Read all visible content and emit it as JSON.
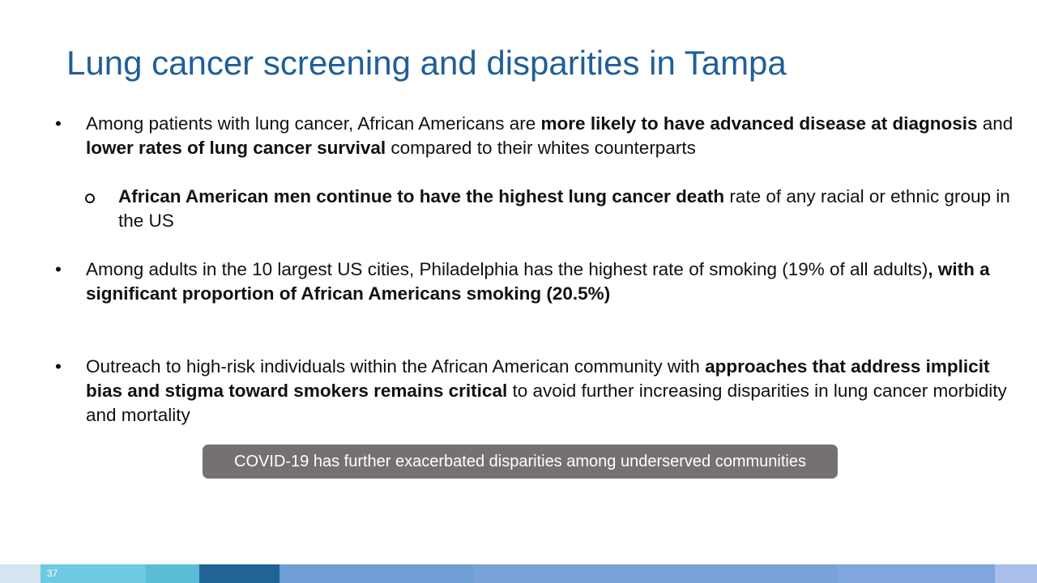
{
  "title": "Lung cancer screening and disparities in Tampa",
  "bullets": [
    {
      "level": 1,
      "runs": [
        {
          "text": "Among patients with lung cancer, African Americans are ",
          "bold": false
        },
        {
          "text": "more likely to have advanced disease at diagnosis",
          "bold": true
        },
        {
          "text": " and ",
          "bold": false
        },
        {
          "text": "lower rates of lung cancer survival",
          "bold": true
        },
        {
          "text": " compared to their whites counterparts",
          "bold": false
        }
      ]
    },
    {
      "level": 2,
      "runs": [
        {
          "text": "African American men continue to have the highest lung cancer death",
          "bold": true
        },
        {
          "text": " rate of any racial or ethnic group in the US",
          "bold": false
        }
      ]
    },
    {
      "level": 1,
      "runs": [
        {
          "text": "Among adults in the 10 largest US cities, Philadelphia has the highest rate of smoking (19% of all adults)",
          "bold": false
        },
        {
          "text": ", with a significant proportion of African Americans smoking (20.5%)",
          "bold": true
        }
      ]
    },
    {
      "level": 1,
      "runs": [
        {
          "text": "Outreach to high-risk individuals within the African American community with ",
          "bold": false
        },
        {
          "text": "approaches that address implicit bias and stigma toward smokers remains critical",
          "bold": true
        },
        {
          "text": " to avoid further increasing disparities in lung cancer morbidity and mortality",
          "bold": false
        }
      ]
    }
  ],
  "callout": "COVID-19 has further exacerbated disparities among underserved communities",
  "slide_number": "37"
}
